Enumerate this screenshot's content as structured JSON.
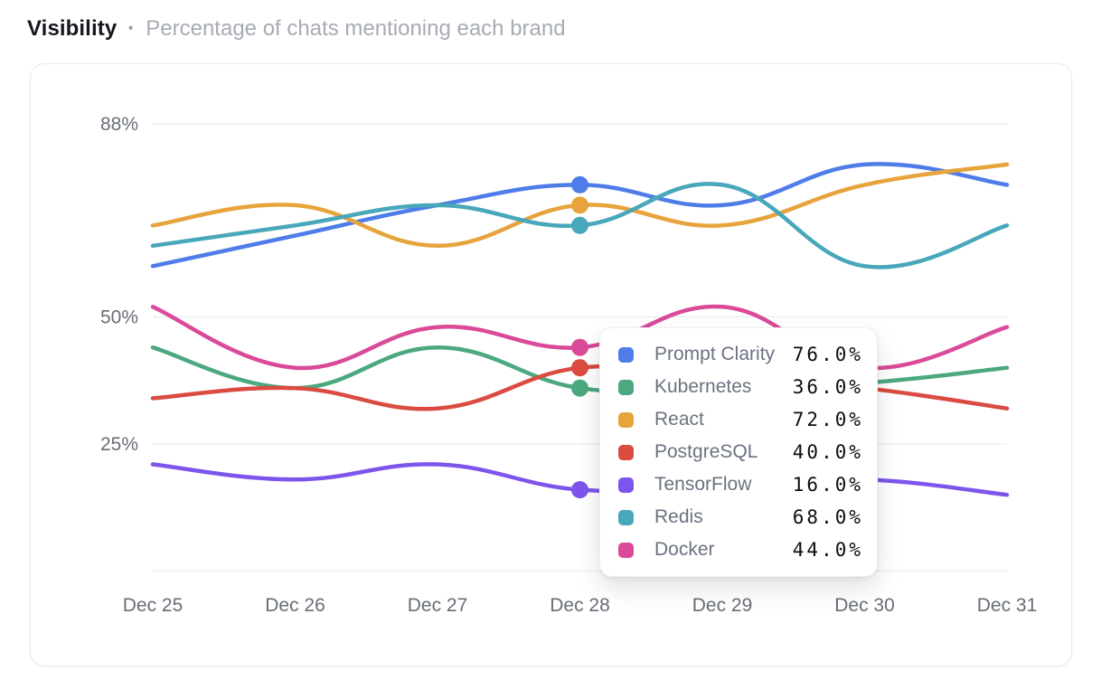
{
  "header": {
    "title": "Visibility",
    "separator": "·",
    "subtitle": "Percentage of chats mentioning each brand"
  },
  "chart_data": {
    "type": "line",
    "title": "Visibility",
    "subtitle": "Percentage of chats mentioning each brand",
    "x_labels": [
      "Dec 25",
      "Dec 26",
      "Dec 27",
      "Dec 28",
      "Dec 29",
      "Dec 30",
      "Dec 31"
    ],
    "y_ticks": [
      {
        "label": "88%",
        "value": 88
      },
      {
        "label": "50%",
        "value": 50
      },
      {
        "label": "25%",
        "value": 25
      },
      {
        "label": "",
        "value": 0
      }
    ],
    "ylim": [
      0,
      100
    ],
    "grid": "horizontal",
    "legend_position": "tooltip",
    "highlight_label": "Dec 28",
    "highlight_index": 3,
    "series": [
      {
        "name": "Prompt Clarity",
        "color": "#4e7ce8",
        "values": [
          60,
          66,
          72,
          76,
          72,
          80,
          76
        ]
      },
      {
        "name": "Kubernetes",
        "color": "#4ba87f",
        "values": [
          44,
          36,
          44,
          36,
          36,
          37,
          40
        ]
      },
      {
        "name": "React",
        "color": "#e7a33c",
        "values": [
          68,
          72,
          64,
          72,
          68,
          76,
          80
        ]
      },
      {
        "name": "PostgreSQL",
        "color": "#da4b41",
        "values": [
          34,
          36,
          32,
          40,
          38,
          36,
          32
        ]
      },
      {
        "name": "TensorFlow",
        "color": "#7d55ec",
        "values": [
          21,
          18,
          21,
          16,
          17,
          18,
          15
        ]
      },
      {
        "name": "Redis",
        "color": "#48a7ba",
        "values": [
          64,
          68,
          72,
          68,
          76,
          60,
          68
        ]
      },
      {
        "name": "Docker",
        "color": "#da4a99",
        "values": [
          52,
          40,
          48,
          44,
          52,
          40,
          48
        ]
      }
    ]
  },
  "tooltip": {
    "rows": [
      {
        "name": "Prompt Clarity",
        "color": "#4e7ce8",
        "value": "76.0%"
      },
      {
        "name": "Kubernetes",
        "color": "#4ba87f",
        "value": "36.0%"
      },
      {
        "name": "React",
        "color": "#e7a33c",
        "value": "72.0%"
      },
      {
        "name": "PostgreSQL",
        "color": "#da4b41",
        "value": "40.0%"
      },
      {
        "name": "TensorFlow",
        "color": "#7d55ec",
        "value": "16.0%"
      },
      {
        "name": "Redis",
        "color": "#48a7ba",
        "value": "68.0%"
      },
      {
        "name": "Docker",
        "color": "#da4a99",
        "value": "44.0%"
      }
    ]
  }
}
